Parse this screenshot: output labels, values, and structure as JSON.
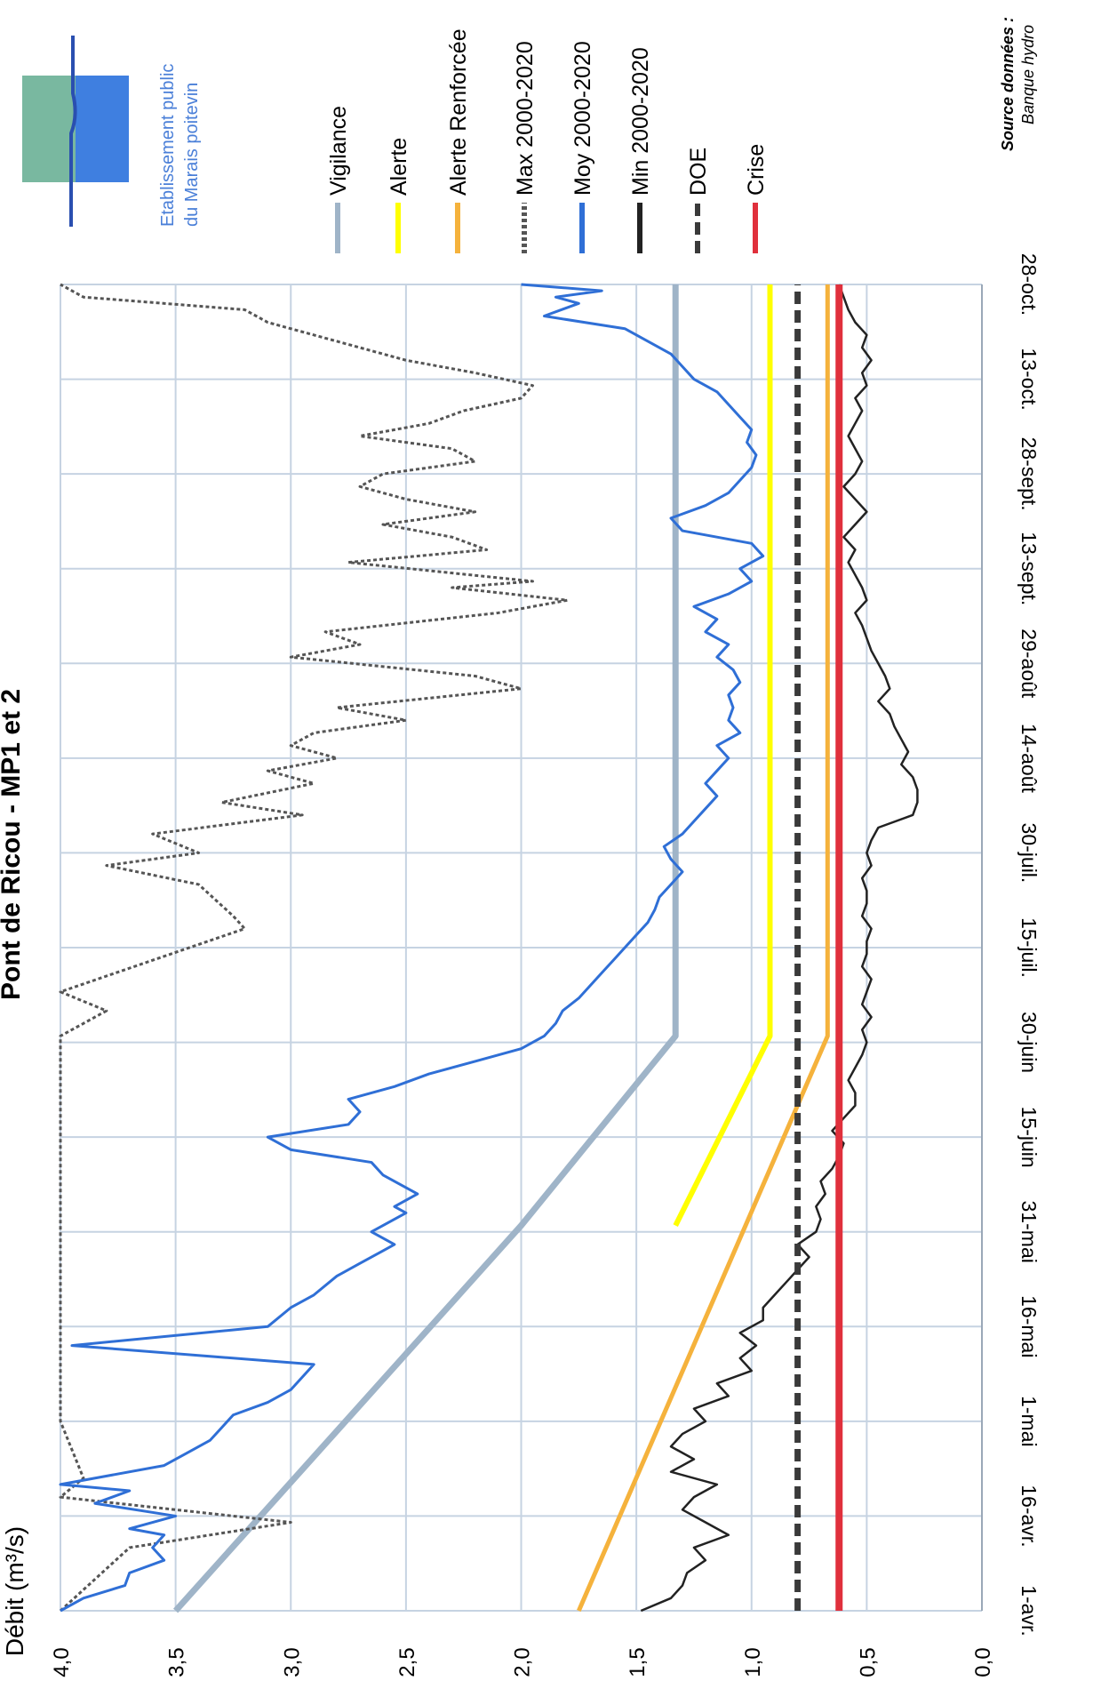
{
  "chart_data": {
    "type": "line",
    "title": "Pont de Ricou - MP1 et 2",
    "ylabel": "Débit (m³/s)",
    "xlabel": "",
    "ylim": [
      0,
      4
    ],
    "yticks": [
      "0,0",
      "0,5",
      "1,0",
      "1,5",
      "2,0",
      "2,5",
      "3,0",
      "3,5",
      "4,0"
    ],
    "xticks": [
      "1-avr.",
      "16-avr.",
      "1-mai",
      "16-mai",
      "31-mai",
      "15-juin",
      "30-juin",
      "15-juil.",
      "30-juil.",
      "14-août",
      "29-août",
      "13-sept.",
      "28-sept.",
      "13-oct.",
      "28-oct."
    ],
    "grid": true,
    "legend_position": "right",
    "source_label": "Source données :",
    "source_value": "Banque hydro",
    "logo_text_1": "Etablissement public",
    "logo_text_2": "du Marais poitevin",
    "series": [
      {
        "name": "Vigilance",
        "color": "#9fb4c8",
        "style": "solid",
        "points": [
          [
            0,
            3.5
          ],
          [
            61,
            2.0
          ],
          [
            91,
            1.33
          ],
          [
            210,
            1.33
          ]
        ]
      },
      {
        "name": "Alerte",
        "color": "#ffff00",
        "style": "solid",
        "points": [
          [
            61,
            1.33
          ],
          [
            91,
            0.92
          ],
          [
            210,
            0.92
          ]
        ]
      },
      {
        "name": "Alerte Renforcée",
        "color": "#f5b23c",
        "style": "solid",
        "points": [
          [
            0,
            1.75
          ],
          [
            91,
            0.67
          ],
          [
            210,
            0.67
          ]
        ]
      },
      {
        "name": "Max 2000-2020",
        "color": "#555555",
        "style": "dotted",
        "points": [
          [
            0,
            4.0
          ],
          [
            5,
            3.85
          ],
          [
            10,
            3.7
          ],
          [
            14,
            3.0
          ],
          [
            18,
            4.0
          ],
          [
            21,
            3.9
          ],
          [
            30,
            4.0
          ],
          [
            91,
            4.0
          ],
          [
            93,
            3.9
          ],
          [
            95,
            3.8
          ],
          [
            98,
            4.0
          ],
          [
            108,
            3.2
          ],
          [
            110,
            3.25
          ],
          [
            115,
            3.4
          ],
          [
            118,
            3.8
          ],
          [
            120,
            3.4
          ],
          [
            123,
            3.6
          ],
          [
            126,
            2.95
          ],
          [
            128,
            3.3
          ],
          [
            131,
            2.9
          ],
          [
            133,
            3.1
          ],
          [
            135,
            2.8
          ],
          [
            137,
            3.0
          ],
          [
            139,
            2.9
          ],
          [
            141,
            2.5
          ],
          [
            143,
            2.8
          ],
          [
            146,
            2.0
          ],
          [
            148,
            2.2
          ],
          [
            151,
            3.0
          ],
          [
            153,
            2.7
          ],
          [
            155,
            2.85
          ],
          [
            158,
            2.1
          ],
          [
            160,
            1.8
          ],
          [
            162,
            2.3
          ],
          [
            163,
            1.95
          ],
          [
            166,
            2.75
          ],
          [
            168,
            2.15
          ],
          [
            170,
            2.3
          ],
          [
            172,
            2.6
          ],
          [
            174,
            2.2
          ],
          [
            176,
            2.5
          ],
          [
            178,
            2.7
          ],
          [
            180,
            2.6
          ],
          [
            182,
            2.2
          ],
          [
            184,
            2.3
          ],
          [
            186,
            2.7
          ],
          [
            188,
            2.4
          ],
          [
            190,
            2.25
          ],
          [
            192,
            2.0
          ],
          [
            194,
            1.95
          ],
          [
            196,
            2.2
          ],
          [
            198,
            2.5
          ],
          [
            200,
            2.7
          ],
          [
            202,
            2.9
          ],
          [
            204,
            3.1
          ],
          [
            206,
            3.2
          ],
          [
            208,
            3.9
          ],
          [
            210,
            4.0
          ]
        ]
      },
      {
        "name": "Moy 2000-2020",
        "color": "#2f6fd6",
        "style": "solid",
        "points": [
          [
            0,
            4.0
          ],
          [
            2,
            3.9
          ],
          [
            4,
            3.72
          ],
          [
            6,
            3.7
          ],
          [
            8,
            3.55
          ],
          [
            10,
            3.6
          ],
          [
            12,
            3.55
          ],
          [
            13,
            3.7
          ],
          [
            15,
            3.5
          ],
          [
            17,
            3.85
          ],
          [
            19,
            3.7
          ],
          [
            20,
            4.0
          ],
          [
            23,
            3.55
          ],
          [
            25,
            3.45
          ],
          [
            27,
            3.35
          ],
          [
            29,
            3.3
          ],
          [
            31,
            3.25
          ],
          [
            33,
            3.1
          ],
          [
            35,
            3.0
          ],
          [
            37,
            2.95
          ],
          [
            39,
            2.9
          ],
          [
            42,
            3.95
          ],
          [
            45,
            3.1
          ],
          [
            48,
            3.0
          ],
          [
            50,
            2.9
          ],
          [
            53,
            2.8
          ],
          [
            55,
            2.7
          ],
          [
            57,
            2.6
          ],
          [
            58,
            2.55
          ],
          [
            60,
            2.65
          ],
          [
            63,
            2.5
          ],
          [
            64,
            2.55
          ],
          [
            66,
            2.45
          ],
          [
            69,
            2.6
          ],
          [
            71,
            2.65
          ],
          [
            73,
            3.0
          ],
          [
            75,
            3.1
          ],
          [
            77,
            2.75
          ],
          [
            79,
            2.7
          ],
          [
            81,
            2.75
          ],
          [
            83,
            2.55
          ],
          [
            85,
            2.4
          ],
          [
            87,
            2.2
          ],
          [
            89,
            2.0
          ],
          [
            91,
            1.9
          ],
          [
            93,
            1.85
          ],
          [
            95,
            1.82
          ],
          [
            97,
            1.75
          ],
          [
            99,
            1.7
          ],
          [
            101,
            1.65
          ],
          [
            103,
            1.6
          ],
          [
            105,
            1.55
          ],
          [
            107,
            1.5
          ],
          [
            109,
            1.45
          ],
          [
            111,
            1.42
          ],
          [
            113,
            1.4
          ],
          [
            115,
            1.35
          ],
          [
            117,
            1.3
          ],
          [
            119,
            1.35
          ],
          [
            121,
            1.38
          ],
          [
            123,
            1.3
          ],
          [
            125,
            1.25
          ],
          [
            127,
            1.2
          ],
          [
            129,
            1.15
          ],
          [
            131,
            1.2
          ],
          [
            133,
            1.15
          ],
          [
            135,
            1.1
          ],
          [
            137,
            1.15
          ],
          [
            139,
            1.05
          ],
          [
            141,
            1.1
          ],
          [
            143,
            1.08
          ],
          [
            145,
            1.1
          ],
          [
            147,
            1.05
          ],
          [
            149,
            1.08
          ],
          [
            151,
            1.15
          ],
          [
            153,
            1.1
          ],
          [
            155,
            1.2
          ],
          [
            157,
            1.15
          ],
          [
            159,
            1.25
          ],
          [
            161,
            1.1
          ],
          [
            163,
            1.0
          ],
          [
            165,
            1.05
          ],
          [
            167,
            0.95
          ],
          [
            169,
            1.0
          ],
          [
            171,
            1.3
          ],
          [
            173,
            1.35
          ],
          [
            175,
            1.2
          ],
          [
            177,
            1.1
          ],
          [
            179,
            1.05
          ],
          [
            181,
            1.0
          ],
          [
            183,
            0.98
          ],
          [
            185,
            1.02
          ],
          [
            187,
            1.0
          ],
          [
            189,
            1.05
          ],
          [
            191,
            1.1
          ],
          [
            193,
            1.15
          ],
          [
            195,
            1.25
          ],
          [
            197,
            1.3
          ],
          [
            199,
            1.35
          ],
          [
            201,
            1.45
          ],
          [
            203,
            1.55
          ],
          [
            205,
            1.9
          ],
          [
            207,
            1.75
          ],
          [
            208,
            1.85
          ],
          [
            209,
            1.65
          ],
          [
            210,
            2.0
          ]
        ]
      },
      {
        "name": "Min 2000-2020",
        "color": "#222222",
        "style": "solid",
        "points": [
          [
            0,
            1.48
          ],
          [
            2,
            1.35
          ],
          [
            4,
            1.3
          ],
          [
            6,
            1.28
          ],
          [
            8,
            1.2
          ],
          [
            10,
            1.25
          ],
          [
            12,
            1.1
          ],
          [
            14,
            1.2
          ],
          [
            16,
            1.3
          ],
          [
            18,
            1.25
          ],
          [
            20,
            1.15
          ],
          [
            22,
            1.35
          ],
          [
            24,
            1.25
          ],
          [
            26,
            1.35
          ],
          [
            28,
            1.3
          ],
          [
            30,
            1.2
          ],
          [
            32,
            1.25
          ],
          [
            34,
            1.1
          ],
          [
            36,
            1.15
          ],
          [
            38,
            1.0
          ],
          [
            40,
            1.05
          ],
          [
            42,
            0.98
          ],
          [
            44,
            1.05
          ],
          [
            46,
            0.95
          ],
          [
            48,
            0.95
          ],
          [
            50,
            0.9
          ],
          [
            52,
            0.85
          ],
          [
            54,
            0.8
          ],
          [
            56,
            0.75
          ],
          [
            58,
            0.8
          ],
          [
            60,
            0.72
          ],
          [
            62,
            0.7
          ],
          [
            64,
            0.72
          ],
          [
            66,
            0.68
          ],
          [
            68,
            0.7
          ],
          [
            70,
            0.65
          ],
          [
            72,
            0.62
          ],
          [
            74,
            0.6
          ],
          [
            76,
            0.65
          ],
          [
            78,
            0.6
          ],
          [
            80,
            0.55
          ],
          [
            82,
            0.55
          ],
          [
            84,
            0.58
          ],
          [
            86,
            0.55
          ],
          [
            88,
            0.52
          ],
          [
            90,
            0.5
          ],
          [
            92,
            0.52
          ],
          [
            94,
            0.48
          ],
          [
            96,
            0.52
          ],
          [
            98,
            0.5
          ],
          [
            100,
            0.48
          ],
          [
            102,
            0.52
          ],
          [
            104,
            0.5
          ],
          [
            106,
            0.5
          ],
          [
            108,
            0.48
          ],
          [
            110,
            0.52
          ],
          [
            112,
            0.5
          ],
          [
            114,
            0.5
          ],
          [
            116,
            0.52
          ],
          [
            118,
            0.48
          ],
          [
            120,
            0.5
          ],
          [
            122,
            0.48
          ],
          [
            124,
            0.45
          ],
          [
            126,
            0.3
          ],
          [
            128,
            0.28
          ],
          [
            130,
            0.28
          ],
          [
            132,
            0.3
          ],
          [
            134,
            0.35
          ],
          [
            136,
            0.32
          ],
          [
            138,
            0.35
          ],
          [
            140,
            0.38
          ],
          [
            142,
            0.4
          ],
          [
            144,
            0.45
          ],
          [
            146,
            0.4
          ],
          [
            148,
            0.42
          ],
          [
            150,
            0.45
          ],
          [
            152,
            0.48
          ],
          [
            154,
            0.5
          ],
          [
            156,
            0.52
          ],
          [
            158,
            0.55
          ],
          [
            160,
            0.5
          ],
          [
            162,
            0.52
          ],
          [
            164,
            0.55
          ],
          [
            166,
            0.58
          ],
          [
            168,
            0.55
          ],
          [
            170,
            0.6
          ],
          [
            172,
            0.55
          ],
          [
            174,
            0.5
          ],
          [
            176,
            0.55
          ],
          [
            178,
            0.6
          ],
          [
            180,
            0.55
          ],
          [
            182,
            0.52
          ],
          [
            184,
            0.55
          ],
          [
            186,
            0.58
          ],
          [
            188,
            0.55
          ],
          [
            190,
            0.52
          ],
          [
            192,
            0.55
          ],
          [
            194,
            0.5
          ],
          [
            196,
            0.52
          ],
          [
            198,
            0.48
          ],
          [
            200,
            0.52
          ],
          [
            202,
            0.5
          ],
          [
            204,
            0.55
          ],
          [
            206,
            0.58
          ],
          [
            208,
            0.6
          ],
          [
            210,
            0.62
          ]
        ]
      },
      {
        "name": "DOE",
        "color": "#3a3a3a",
        "style": "dashed",
        "points": [
          [
            0,
            0.8
          ],
          [
            210,
            0.8
          ]
        ]
      },
      {
        "name": "Crise",
        "color": "#e0303c",
        "style": "solid",
        "points": [
          [
            0,
            0.62
          ],
          [
            210,
            0.62
          ]
        ]
      }
    ]
  }
}
